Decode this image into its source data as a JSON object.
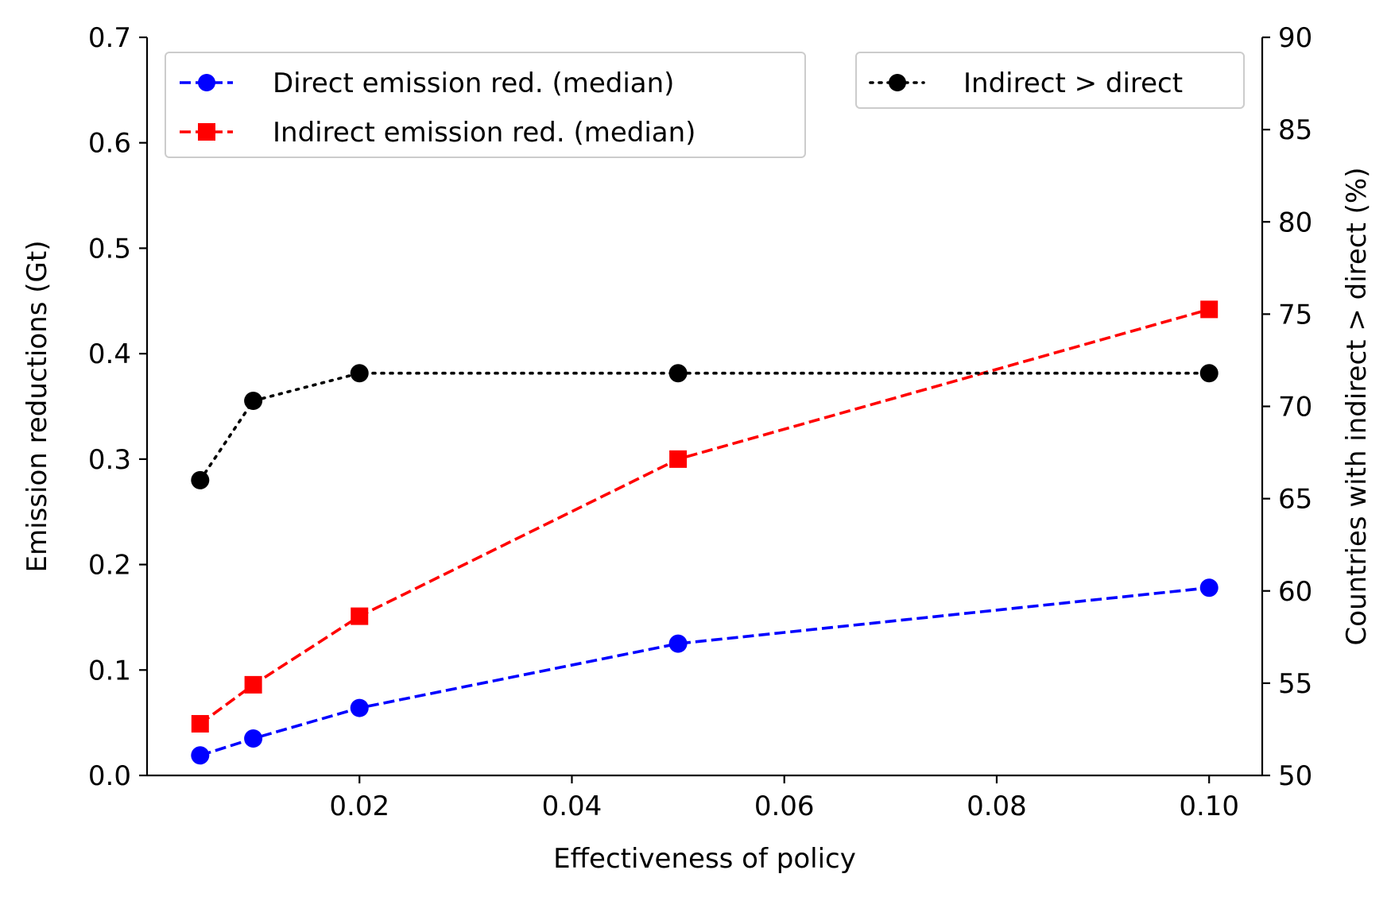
{
  "chart_data": {
    "type": "line",
    "xlabel": "Effectiveness of policy",
    "ylabel": "Emission reductions (Gt)",
    "y2label": "Countries with indirect > direct (%)",
    "x": [
      0.005,
      0.01,
      0.02,
      0.05,
      0.1
    ],
    "xlim": [
      0.0,
      0.105
    ],
    "ylim": [
      0.0,
      0.7
    ],
    "y2lim": [
      50,
      90
    ],
    "x_ticks": [
      "0.02",
      "0.04",
      "0.06",
      "0.08",
      "0.10"
    ],
    "x_tick_values": [
      0.02,
      0.04,
      0.06,
      0.08,
      0.1
    ],
    "y_ticks": [
      "0.0",
      "0.1",
      "0.2",
      "0.3",
      "0.4",
      "0.5",
      "0.6",
      "0.7"
    ],
    "y_tick_values": [
      0.0,
      0.1,
      0.2,
      0.3,
      0.4,
      0.5,
      0.6,
      0.7
    ],
    "y2_ticks": [
      "50",
      "55",
      "60",
      "65",
      "70",
      "75",
      "80",
      "85",
      "90"
    ],
    "y2_tick_values": [
      50,
      55,
      60,
      65,
      70,
      75,
      80,
      85,
      90
    ],
    "grid": false,
    "series": [
      {
        "name": "Direct emission red. (median)",
        "axis": "left",
        "values": [
          0.019,
          0.035,
          0.064,
          0.125,
          0.178
        ],
        "color": "#0000ff",
        "line": "dashed",
        "marker": "circle",
        "legend": "top-left"
      },
      {
        "name": "Indirect emission red. (median)",
        "axis": "left",
        "values": [
          0.049,
          0.086,
          0.151,
          0.3,
          0.442
        ],
        "color": "#ff0000",
        "line": "dashed",
        "marker": "square",
        "legend": "top-left"
      },
      {
        "name": "Indirect > direct",
        "axis": "right",
        "values": [
          66.0,
          70.3,
          71.8,
          71.8,
          71.8
        ],
        "color": "#000000",
        "line": "dotted",
        "marker": "circle",
        "legend": "top-right"
      }
    ]
  }
}
